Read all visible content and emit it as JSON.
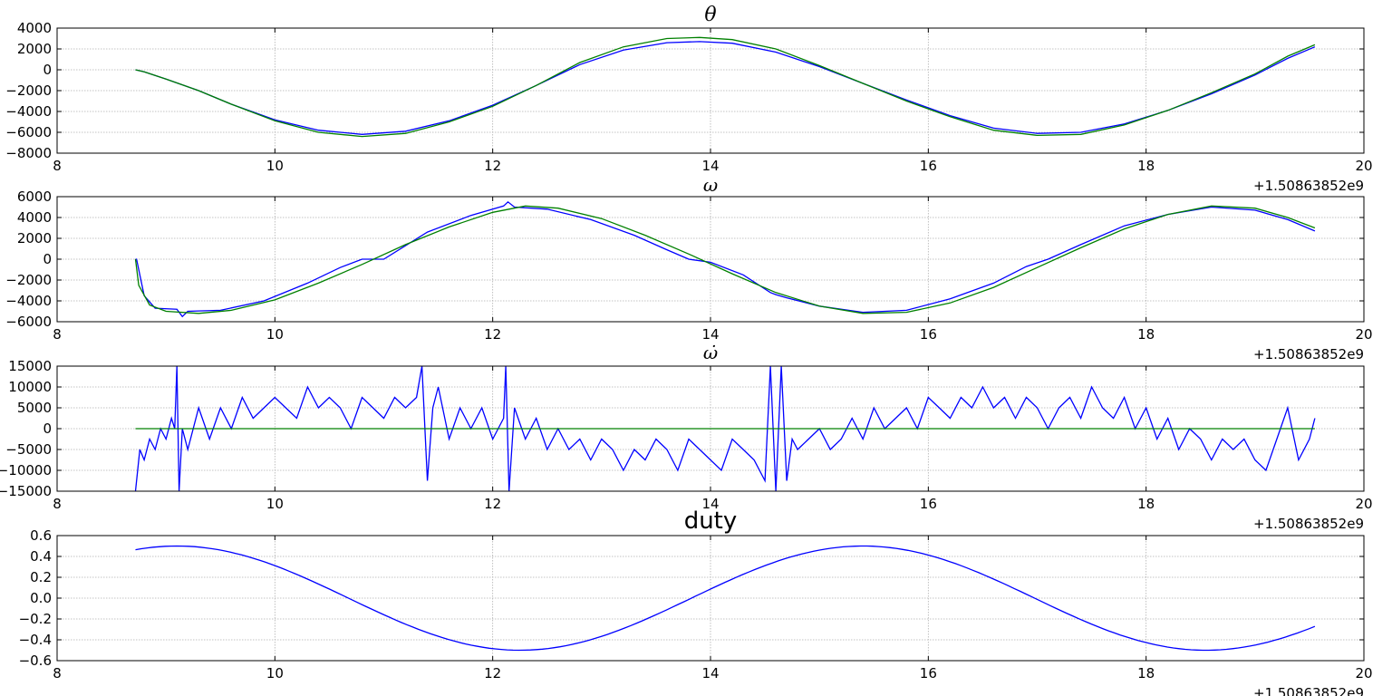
{
  "chart_data": [
    {
      "type": "line",
      "title": "θ",
      "xlim": [
        8,
        20
      ],
      "ylim": [
        -8000,
        4000
      ],
      "xticks": [
        8,
        10,
        12,
        14,
        16,
        18,
        20
      ],
      "yticks": [
        4000,
        2000,
        0,
        -2000,
        -4000,
        -6000,
        -8000
      ],
      "x_offset_label": "+1.50863852e9",
      "grid": true,
      "series": [
        {
          "color": "#0000ff",
          "x": [
            8.72,
            8.8,
            9.0,
            9.3,
            9.6,
            10.0,
            10.4,
            10.8,
            11.2,
            11.6,
            12.0,
            12.4,
            12.8,
            13.2,
            13.6,
            13.9,
            14.2,
            14.6,
            15.0,
            15.4,
            15.8,
            16.2,
            16.6,
            17.0,
            17.4,
            17.8,
            18.2,
            18.6,
            19.0,
            19.3,
            19.55
          ],
          "y": [
            0,
            -200,
            -900,
            -2000,
            -3300,
            -4800,
            -5800,
            -6200,
            -5900,
            -4900,
            -3400,
            -1500,
            500,
            1900,
            2600,
            2700,
            2550,
            1700,
            300,
            -1300,
            -2900,
            -4400,
            -5600,
            -6100,
            -6000,
            -5200,
            -3900,
            -2300,
            -500,
            1100,
            2200
          ]
        },
        {
          "color": "#008000",
          "x": [
            8.72,
            8.8,
            9.0,
            9.3,
            9.6,
            10.0,
            10.4,
            10.8,
            11.2,
            11.6,
            12.0,
            12.4,
            12.8,
            13.2,
            13.6,
            13.9,
            14.2,
            14.6,
            15.0,
            15.4,
            15.8,
            16.2,
            16.6,
            17.0,
            17.4,
            17.8,
            18.2,
            18.6,
            19.0,
            19.3,
            19.55
          ],
          "y": [
            0,
            -200,
            -900,
            -2000,
            -3300,
            -4900,
            -6000,
            -6400,
            -6100,
            -5000,
            -3500,
            -1500,
            700,
            2200,
            3000,
            3100,
            2900,
            2000,
            400,
            -1300,
            -3000,
            -4500,
            -5800,
            -6300,
            -6200,
            -5300,
            -3900,
            -2200,
            -400,
            1300,
            2400
          ]
        }
      ]
    },
    {
      "type": "line",
      "title": "ω",
      "xlim": [
        8,
        20
      ],
      "ylim": [
        -6000,
        6000
      ],
      "xticks": [
        8,
        10,
        12,
        14,
        16,
        18,
        20
      ],
      "yticks": [
        6000,
        4000,
        2000,
        0,
        -2000,
        -4000,
        -6000
      ],
      "x_offset_label": "+1.50863852e9",
      "grid": true,
      "series": [
        {
          "color": "#0000ff",
          "x": [
            8.72,
            8.73,
            8.8,
            8.9,
            9.1,
            9.15,
            9.2,
            9.5,
            9.9,
            10.3,
            10.6,
            10.8,
            11.0,
            11.4,
            11.8,
            12.1,
            12.14,
            12.2,
            12.5,
            12.9,
            13.3,
            13.6,
            13.8,
            14.0,
            14.3,
            14.55,
            14.6,
            14.7,
            15.0,
            15.4,
            15.8,
            16.2,
            16.6,
            16.9,
            17.1,
            17.4,
            17.8,
            18.2,
            18.6,
            19.0,
            19.3,
            19.55
          ],
          "y": [
            0,
            0,
            -3500,
            -4700,
            -4800,
            -5500,
            -5000,
            -4900,
            -4000,
            -2300,
            -800,
            0,
            0,
            2600,
            4200,
            5100,
            5500,
            5000,
            4800,
            3800,
            2300,
            900,
            0,
            -300,
            -1500,
            -3200,
            -3400,
            -3700,
            -4500,
            -5100,
            -4900,
            -3800,
            -2300,
            -700,
            0,
            1400,
            3200,
            4300,
            5000,
            4700,
            3800,
            2700
          ]
        },
        {
          "color": "#008000",
          "x": [
            8.72,
            8.75,
            8.85,
            9.0,
            9.3,
            9.6,
            10.0,
            10.4,
            10.8,
            11.2,
            11.6,
            12.0,
            12.3,
            12.6,
            13.0,
            13.4,
            13.8,
            14.2,
            14.6,
            15.0,
            15.4,
            15.8,
            16.2,
            16.6,
            17.0,
            17.4,
            17.8,
            18.2,
            18.6,
            19.0,
            19.3,
            19.55
          ],
          "y": [
            0,
            -2500,
            -4400,
            -5000,
            -5200,
            -4900,
            -3900,
            -2300,
            -500,
            1400,
            3100,
            4500,
            5100,
            4900,
            3900,
            2300,
            500,
            -1400,
            -3200,
            -4500,
            -5200,
            -5100,
            -4200,
            -2700,
            -800,
            1100,
            2900,
            4300,
            5100,
            4900,
            4000,
            3000
          ]
        }
      ]
    },
    {
      "type": "line",
      "title": "ω̇",
      "xlim": [
        8,
        20
      ],
      "ylim": [
        -15000,
        15000
      ],
      "xticks": [
        8,
        10,
        12,
        14,
        16,
        18,
        20
      ],
      "yticks": [
        15000,
        10000,
        5000,
        0,
        -5000,
        -10000,
        -15000
      ],
      "x_offset_label": "+1.50863852e9",
      "grid": true,
      "series": [
        {
          "color": "#0000ff",
          "x": [
            8.72,
            8.76,
            8.8,
            8.85,
            8.9,
            8.95,
            9.0,
            9.05,
            9.08,
            9.1,
            9.12,
            9.15,
            9.2,
            9.3,
            9.4,
            9.5,
            9.6,
            9.7,
            9.8,
            9.9,
            10.0,
            10.1,
            10.2,
            10.3,
            10.4,
            10.5,
            10.6,
            10.7,
            10.8,
            10.9,
            11.0,
            11.1,
            11.2,
            11.3,
            11.35,
            11.4,
            11.45,
            11.5,
            11.6,
            11.7,
            11.8,
            11.9,
            12.0,
            12.1,
            12.12,
            12.15,
            12.2,
            12.3,
            12.4,
            12.5,
            12.6,
            12.7,
            12.8,
            12.9,
            13.0,
            13.1,
            13.2,
            13.3,
            13.4,
            13.5,
            13.6,
            13.7,
            13.8,
            13.9,
            14.0,
            14.1,
            14.2,
            14.3,
            14.4,
            14.5,
            14.55,
            14.6,
            14.65,
            14.7,
            14.75,
            14.8,
            14.9,
            15.0,
            15.1,
            15.2,
            15.3,
            15.4,
            15.5,
            15.6,
            15.7,
            15.8,
            15.9,
            16.0,
            16.1,
            16.2,
            16.3,
            16.4,
            16.5,
            16.6,
            16.7,
            16.8,
            16.9,
            17.0,
            17.1,
            17.2,
            17.3,
            17.4,
            17.5,
            17.6,
            17.7,
            17.8,
            17.9,
            18.0,
            18.1,
            18.2,
            18.3,
            18.4,
            18.5,
            18.6,
            18.7,
            18.8,
            18.9,
            19.0,
            19.1,
            19.2,
            19.3,
            19.4,
            19.5,
            19.55
          ],
          "y": [
            -15000,
            -5000,
            -7500,
            -2500,
            -5000,
            0,
            -2500,
            2500,
            0,
            15000,
            -15000,
            0,
            -5000,
            5000,
            -2500,
            5000,
            0,
            7500,
            2500,
            5000,
            7500,
            5000,
            2500,
            10000,
            5000,
            7500,
            5000,
            0,
            7500,
            5000,
            2500,
            7500,
            5000,
            7500,
            15000,
            -12500,
            5000,
            10000,
            -2500,
            5000,
            0,
            5000,
            -2500,
            2500,
            15000,
            -15000,
            5000,
            -2500,
            2500,
            -5000,
            0,
            -5000,
            -2500,
            -7500,
            -2500,
            -5000,
            -10000,
            -5000,
            -7500,
            -2500,
            -5000,
            -10000,
            -2500,
            -5000,
            -7500,
            -10000,
            -2500,
            -5000,
            -7500,
            -12500,
            15000,
            -15000,
            15000,
            -12500,
            -2500,
            -5000,
            -2500,
            0,
            -5000,
            -2500,
            2500,
            -2500,
            5000,
            0,
            2500,
            5000,
            0,
            7500,
            5000,
            2500,
            7500,
            5000,
            10000,
            5000,
            7500,
            2500,
            7500,
            5000,
            0,
            5000,
            7500,
            2500,
            10000,
            5000,
            2500,
            7500,
            0,
            5000,
            -2500,
            2500,
            -5000,
            0,
            -2500,
            -7500,
            -2500,
            -5000,
            -2500,
            -7500,
            -10000,
            -2500,
            5000,
            -7500,
            -2500,
            2500
          ]
        },
        {
          "color": "#008000",
          "x": [
            8.72,
            19.55
          ],
          "y": [
            0,
            0
          ]
        }
      ]
    },
    {
      "type": "line",
      "title": "duty",
      "xlim": [
        8,
        20
      ],
      "ylim": [
        -0.6,
        0.6
      ],
      "xticks": [
        8,
        10,
        12,
        14,
        16,
        18,
        20
      ],
      "yticks": [
        0.6,
        0.4,
        0.2,
        0.0,
        -0.2,
        -0.4,
        -0.6
      ],
      "x_offset_label": "+1.50863852e9",
      "grid": true,
      "series": [
        {
          "color": "#0000ff",
          "formula": "sine",
          "x_start": 8.72,
          "x_end": 19.55,
          "amplitude": 0.5,
          "period": 6.3,
          "x_peak": 9.1
        }
      ]
    }
  ]
}
